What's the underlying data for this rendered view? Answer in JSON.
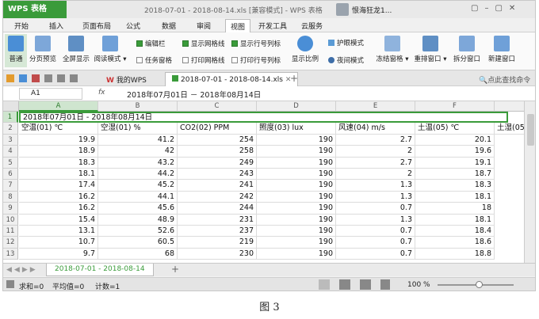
{
  "title_bar": {
    "app_button": "WPS 表格",
    "document_title": "2018-07-01 - 2018-08-14.xls [兼容模式] - WPS 表格",
    "user": "恨海狂龙1..."
  },
  "menu_tabs": [
    "开始",
    "插入",
    "页面布局",
    "公式",
    "数据",
    "审阅",
    "视图",
    "开发工具",
    "云服务"
  ],
  "ribbon": {
    "view_buttons": [
      "普通",
      "分页预览",
      "全屏显示",
      "阅读模式"
    ],
    "checkboxes": [
      "编辑栏",
      "任务窗格",
      "显示网格线",
      "打印网格线",
      "显示行号列标",
      "打印行号列标"
    ],
    "zoom": "显示比例",
    "eye_mode": "护眼模式",
    "night_mode": "夜间模式",
    "window_buttons": [
      "冻结窗格",
      "重排窗口",
      "拆分窗口",
      "新建窗口"
    ]
  },
  "doc_tabs": {
    "home": "我的WPS",
    "file": "2018-07-01 - 2018-08-14.xls",
    "search": "点此查找命令"
  },
  "formula_bar": {
    "cell": "A1",
    "fx": "fx",
    "content": "2018年07月01日 － 2018年08月14日"
  },
  "sheet": {
    "column_headers": [
      "A",
      "B",
      "C",
      "D",
      "E",
      "F"
    ],
    "row_numbers": [
      1,
      2,
      3,
      4,
      5,
      6,
      7,
      8,
      9,
      10,
      11,
      12,
      13
    ],
    "rows": [
      [
        "2018年07月01日 - 2018年08月14日"
      ],
      [
        "空温(01) ℃",
        "空湿(01) %",
        "CO2(02) PPM",
        "照度(03) lux",
        "风速(04) m/s",
        "土温(05) ℃",
        "土湿(05"
      ],
      [
        19.9,
        41.2,
        254,
        190,
        2.7,
        20.1
      ],
      [
        18.9,
        42,
        258,
        190,
        2,
        19.6
      ],
      [
        18.3,
        43.2,
        249,
        190,
        2.7,
        19.1
      ],
      [
        18.1,
        44.2,
        243,
        190,
        2,
        18.7
      ],
      [
        17.4,
        45.2,
        241,
        190,
        1.3,
        18.3
      ],
      [
        16.2,
        44.1,
        242,
        190,
        1.3,
        18.1
      ],
      [
        16.2,
        45.6,
        244,
        190,
        0.7,
        18
      ],
      [
        15.4,
        48.9,
        231,
        190,
        1.3,
        18.1
      ],
      [
        13.1,
        52.6,
        237,
        190,
        0.7,
        18.4
      ],
      [
        10.7,
        60.5,
        219,
        190,
        0.7,
        18.6
      ],
      [
        9.7,
        68,
        230,
        190,
        0.7,
        18.8
      ]
    ]
  },
  "sheet_tab": "2018-07-01 - 2018-08-14",
  "status_bar": {
    "sum": "求和=0",
    "average": "平均值=0",
    "count": "计数=1",
    "zoom": "100 %"
  },
  "caption": "图 3"
}
